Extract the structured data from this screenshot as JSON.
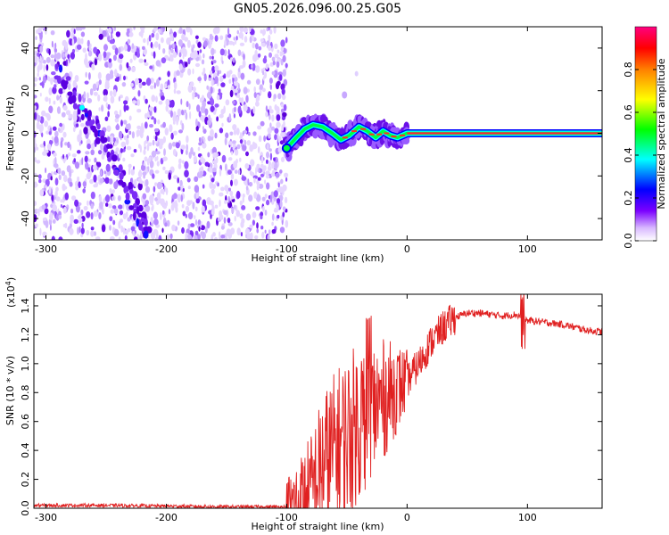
{
  "title": "GN05.2026.096.00.25.G05",
  "chart_data": [
    {
      "type": "heatmap",
      "xlabel": "Height of straight line (km)",
      "ylabel": "Frequency (Hz)",
      "xlim": [
        -310,
        162
      ],
      "ylim": [
        -50,
        50
      ],
      "xticks": [
        -300,
        -200,
        -100,
        0,
        100
      ],
      "yticks": [
        -40,
        -20,
        0,
        20,
        40
      ],
      "noise_region_x": [
        -310,
        -100
      ],
      "diagonal_feature": [
        {
          "x": -290,
          "y": 30
        },
        {
          "x": -270,
          "y": 12
        },
        {
          "x": -255,
          "y": -2
        },
        {
          "x": -240,
          "y": -18
        },
        {
          "x": -225,
          "y": -35
        },
        {
          "x": -215,
          "y": -48
        }
      ],
      "signal_track": [
        {
          "x": -100,
          "y": -7
        },
        {
          "x": -92,
          "y": -2
        },
        {
          "x": -85,
          "y": 2
        },
        {
          "x": -78,
          "y": 4
        },
        {
          "x": -70,
          "y": 3
        },
        {
          "x": -62,
          "y": 0
        },
        {
          "x": -55,
          "y": -3
        },
        {
          "x": -48,
          "y": -1
        },
        {
          "x": -40,
          "y": 3
        },
        {
          "x": -33,
          "y": 1
        },
        {
          "x": -26,
          "y": -2
        },
        {
          "x": -20,
          "y": 1
        },
        {
          "x": -14,
          "y": -1
        },
        {
          "x": -8,
          "y": -2
        },
        {
          "x": 0,
          "y": 0
        },
        {
          "x": 162,
          "y": 0
        }
      ],
      "colorbar": {
        "label": "Normalized spectral amplitude",
        "ticks": [
          0.0,
          0.2,
          0.4,
          0.6,
          0.8
        ],
        "range": [
          0,
          1
        ],
        "colors": [
          "#ffffff",
          "#7b00ff",
          "#0000ff",
          "#00ffff",
          "#00ff00",
          "#ffff00",
          "#ff8000",
          "#ff0000",
          "#ff0080"
        ]
      }
    },
    {
      "type": "line",
      "xlabel": "Height of straight line (km)",
      "ylabel": "SNR (10 * v/v)",
      "y_multiplier": "(x10",
      "y_multiplier_exp": "4",
      "y_multiplier_close": ")",
      "xlim": [
        -310,
        162
      ],
      "ylim": [
        0,
        1.48
      ],
      "xticks": [
        -300,
        -200,
        -100,
        0,
        100
      ],
      "yticks": [
        0.0,
        0.2,
        0.4,
        0.6,
        0.8,
        1.0,
        1.2,
        1.4
      ],
      "color": "#e02020",
      "series": [
        {
          "x": [
            -310,
            -250,
            -150,
            -100,
            -90,
            -80,
            -75,
            -70,
            -60,
            -50,
            -40,
            -30,
            -20,
            -10,
            0,
            10,
            20,
            30,
            40,
            50,
            60,
            70,
            80,
            90,
            95,
            100,
            110,
            120,
            130,
            140,
            150,
            162
          ],
          "y": [
            0.02,
            0.02,
            0.01,
            0.01,
            0.03,
            0.1,
            0.2,
            0.3,
            0.4,
            0.5,
            0.6,
            0.68,
            0.75,
            0.82,
            0.88,
            1.0,
            1.15,
            1.25,
            1.32,
            1.35,
            1.35,
            1.34,
            1.33,
            1.34,
            1.32,
            1.3,
            1.29,
            1.28,
            1.27,
            1.25,
            1.23,
            1.22
          ]
        }
      ]
    }
  ]
}
